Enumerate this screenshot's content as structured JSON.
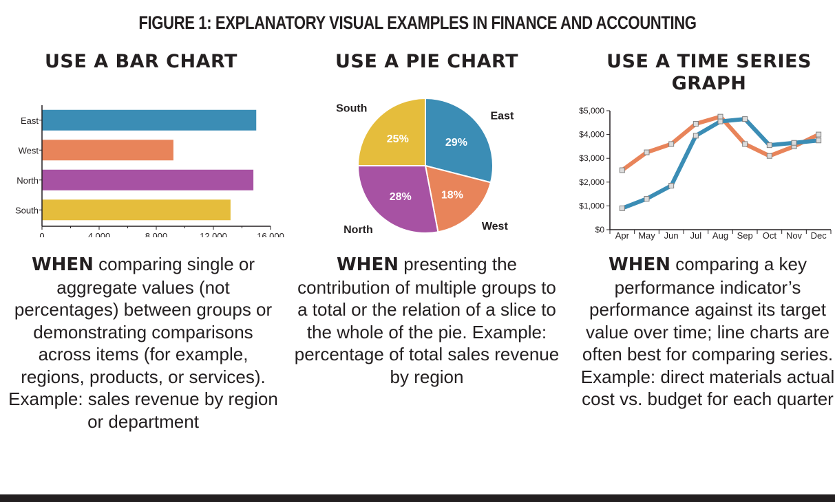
{
  "figure_title": "FIGURE 1: EXPLANATORY VISUAL EXAMPLES IN FINANCE AND ACCOUNTING",
  "columns": [
    {
      "title": "USE A BAR CHART",
      "when": "WHEN",
      "description": "comparing single or aggregate values (not percentages) between groups or demonstrating comparisons across items (for example, regions, products, or services). Example: sales revenue by region or department"
    },
    {
      "title": "USE A PIE CHART",
      "when": "WHEN",
      "description": "presenting the contribution of multiple groups to a total or the relation of a slice to the whole of the pie. Example: percentage of total sales revenue by region"
    },
    {
      "title": "USE A TIME SERIES GRAPH",
      "when": "WHEN",
      "description": "comparing a key performance indicator’s performance against its target value over time; line charts are often best for comparing series. Example: direct materials actual cost vs. budget for each quarter"
    }
  ],
  "colors": {
    "teal": "#3b8db5",
    "orange": "#e8845a",
    "purple": "#a752a3",
    "yellow": "#e5bd3c",
    "text": "#231f20"
  },
  "chart_data": [
    {
      "type": "bar",
      "orientation": "horizontal",
      "categories": [
        "East",
        "West",
        "North",
        "South"
      ],
      "values": [
        15000,
        9200,
        14800,
        13200
      ],
      "xlim": [
        0,
        16000
      ],
      "xticks": [
        "0",
        "4,000",
        "8,000",
        "12,000",
        "16,000"
      ],
      "tick_values": [
        0,
        4000,
        8000,
        12000,
        16000
      ],
      "bar_colors": [
        "#3b8db5",
        "#e8845a",
        "#a752a3",
        "#e5bd3c"
      ]
    },
    {
      "type": "pie",
      "slices": [
        {
          "label": "East",
          "value": 29,
          "value_label": "29%",
          "color": "#3b8db5"
        },
        {
          "label": "West",
          "value": 18,
          "value_label": "18%",
          "color": "#e8845a"
        },
        {
          "label": "North",
          "value": 28,
          "value_label": "28%",
          "color": "#a752a3"
        },
        {
          "label": "South",
          "value": 25,
          "value_label": "25%",
          "color": "#e5bd3c"
        }
      ]
    },
    {
      "type": "line",
      "x": [
        "Apr",
        "May",
        "Jun",
        "Jul",
        "Aug",
        "Sep",
        "Oct",
        "Nov",
        "Dec"
      ],
      "ylim": [
        0,
        5000
      ],
      "yticks": [
        "$0",
        "$1,000",
        "$2,000",
        "$3,000",
        "$4,000",
        "$5,000"
      ],
      "tick_values": [
        0,
        1000,
        2000,
        3000,
        4000,
        5000
      ],
      "series": [
        {
          "color": "#e8845a",
          "values": [
            2500,
            3250,
            3600,
            4450,
            4750,
            3600,
            3100,
            3500,
            4000
          ]
        },
        {
          "color": "#3b8db5",
          "values": [
            900,
            1300,
            1850,
            3950,
            4550,
            4650,
            3550,
            3650,
            3750
          ]
        }
      ]
    }
  ]
}
